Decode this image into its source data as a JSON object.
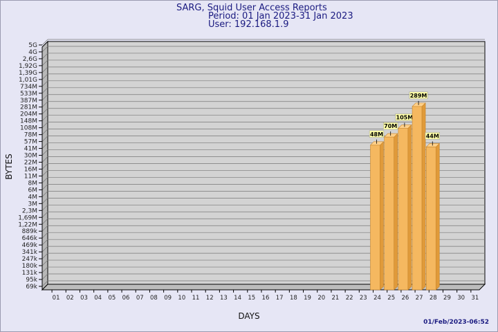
{
  "header": {
    "line1": "SARG, Squid User Access Reports",
    "line2": "Period: 01 Jan 2023-31 Jan 2023",
    "line3": "User: 192.168.1.9"
  },
  "timestamp": "01/Feb/2023-06:52",
  "chart_data": {
    "type": "bar",
    "xlabel": "DAYS",
    "ylabel": "BYTES",
    "y_scale": "log",
    "y_tick_labels": [
      "69k",
      "95k",
      "131k",
      "180k",
      "247k",
      "341k",
      "469k",
      "646k",
      "889k",
      "1,22M",
      "1,69M",
      "2,3M",
      "3M",
      "4M",
      "6M",
      "8M",
      "11M",
      "16M",
      "22M",
      "30M",
      "41M",
      "57M",
      "78M",
      "108M",
      "148M",
      "204M",
      "281M",
      "387M",
      "533M",
      "734M",
      "1,01G",
      "1,39G",
      "1,92G",
      "2,6G",
      "4G",
      "5G"
    ],
    "categories": [
      "01",
      "02",
      "03",
      "04",
      "05",
      "06",
      "07",
      "08",
      "09",
      "10",
      "11",
      "12",
      "13",
      "14",
      "15",
      "16",
      "17",
      "18",
      "19",
      "20",
      "21",
      "22",
      "23",
      "24",
      "25",
      "26",
      "27",
      "28",
      "29",
      "30",
      "31"
    ],
    "values": [
      0,
      0,
      0,
      0,
      0,
      0,
      0,
      0,
      0,
      0,
      0,
      0,
      0,
      0,
      0,
      0,
      0,
      0,
      0,
      0,
      0,
      0,
      0,
      48000000,
      70000000,
      105000000,
      289000000,
      44000000,
      0,
      0,
      0
    ],
    "data_labels": [
      "",
      "",
      "",
      "",
      "",
      "",
      "",
      "",
      "",
      "",
      "",
      "",
      "",
      "",
      "",
      "",
      "",
      "",
      "",
      "",
      "",
      "",
      "",
      "48M",
      "70M",
      "105M",
      "289M",
      "44M",
      "",
      "",
      ""
    ],
    "grid": true,
    "colors": {
      "bar": "#f5b860",
      "bar_side": "#e09a3a",
      "plot_bg": "#d3d3d3",
      "label_bg": "#ffffa8"
    }
  }
}
